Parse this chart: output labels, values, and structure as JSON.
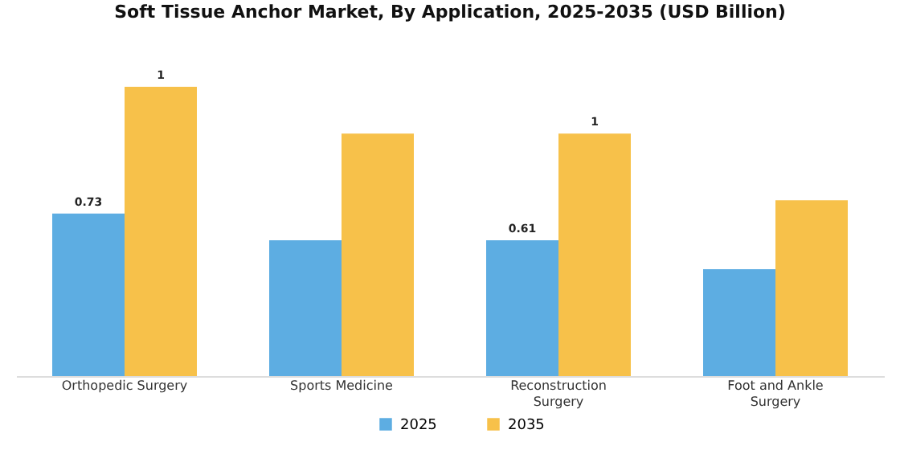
{
  "chart_data": {
    "type": "bar",
    "title": "Soft Tissue Anchor Market, By Application, 2025-2035 (USD Billion)",
    "categories": [
      "Orthopedic Surgery",
      "Sports Medicine",
      "Reconstruction\nSurgery",
      "Foot and Ankle\nSurgery"
    ],
    "series": [
      {
        "name": "2025",
        "color": "#5dade2",
        "values": [
          0.73,
          0.61,
          0.61,
          0.48
        ],
        "value_labels": [
          "0.73",
          null,
          "0.61",
          null
        ]
      },
      {
        "name": "2035",
        "color": "#f7c14a",
        "values": [
          1.3,
          1.09,
          1.09,
          0.79
        ],
        "value_labels": [
          "1",
          null,
          "1",
          null
        ]
      }
    ],
    "legend": "bottom"
  }
}
